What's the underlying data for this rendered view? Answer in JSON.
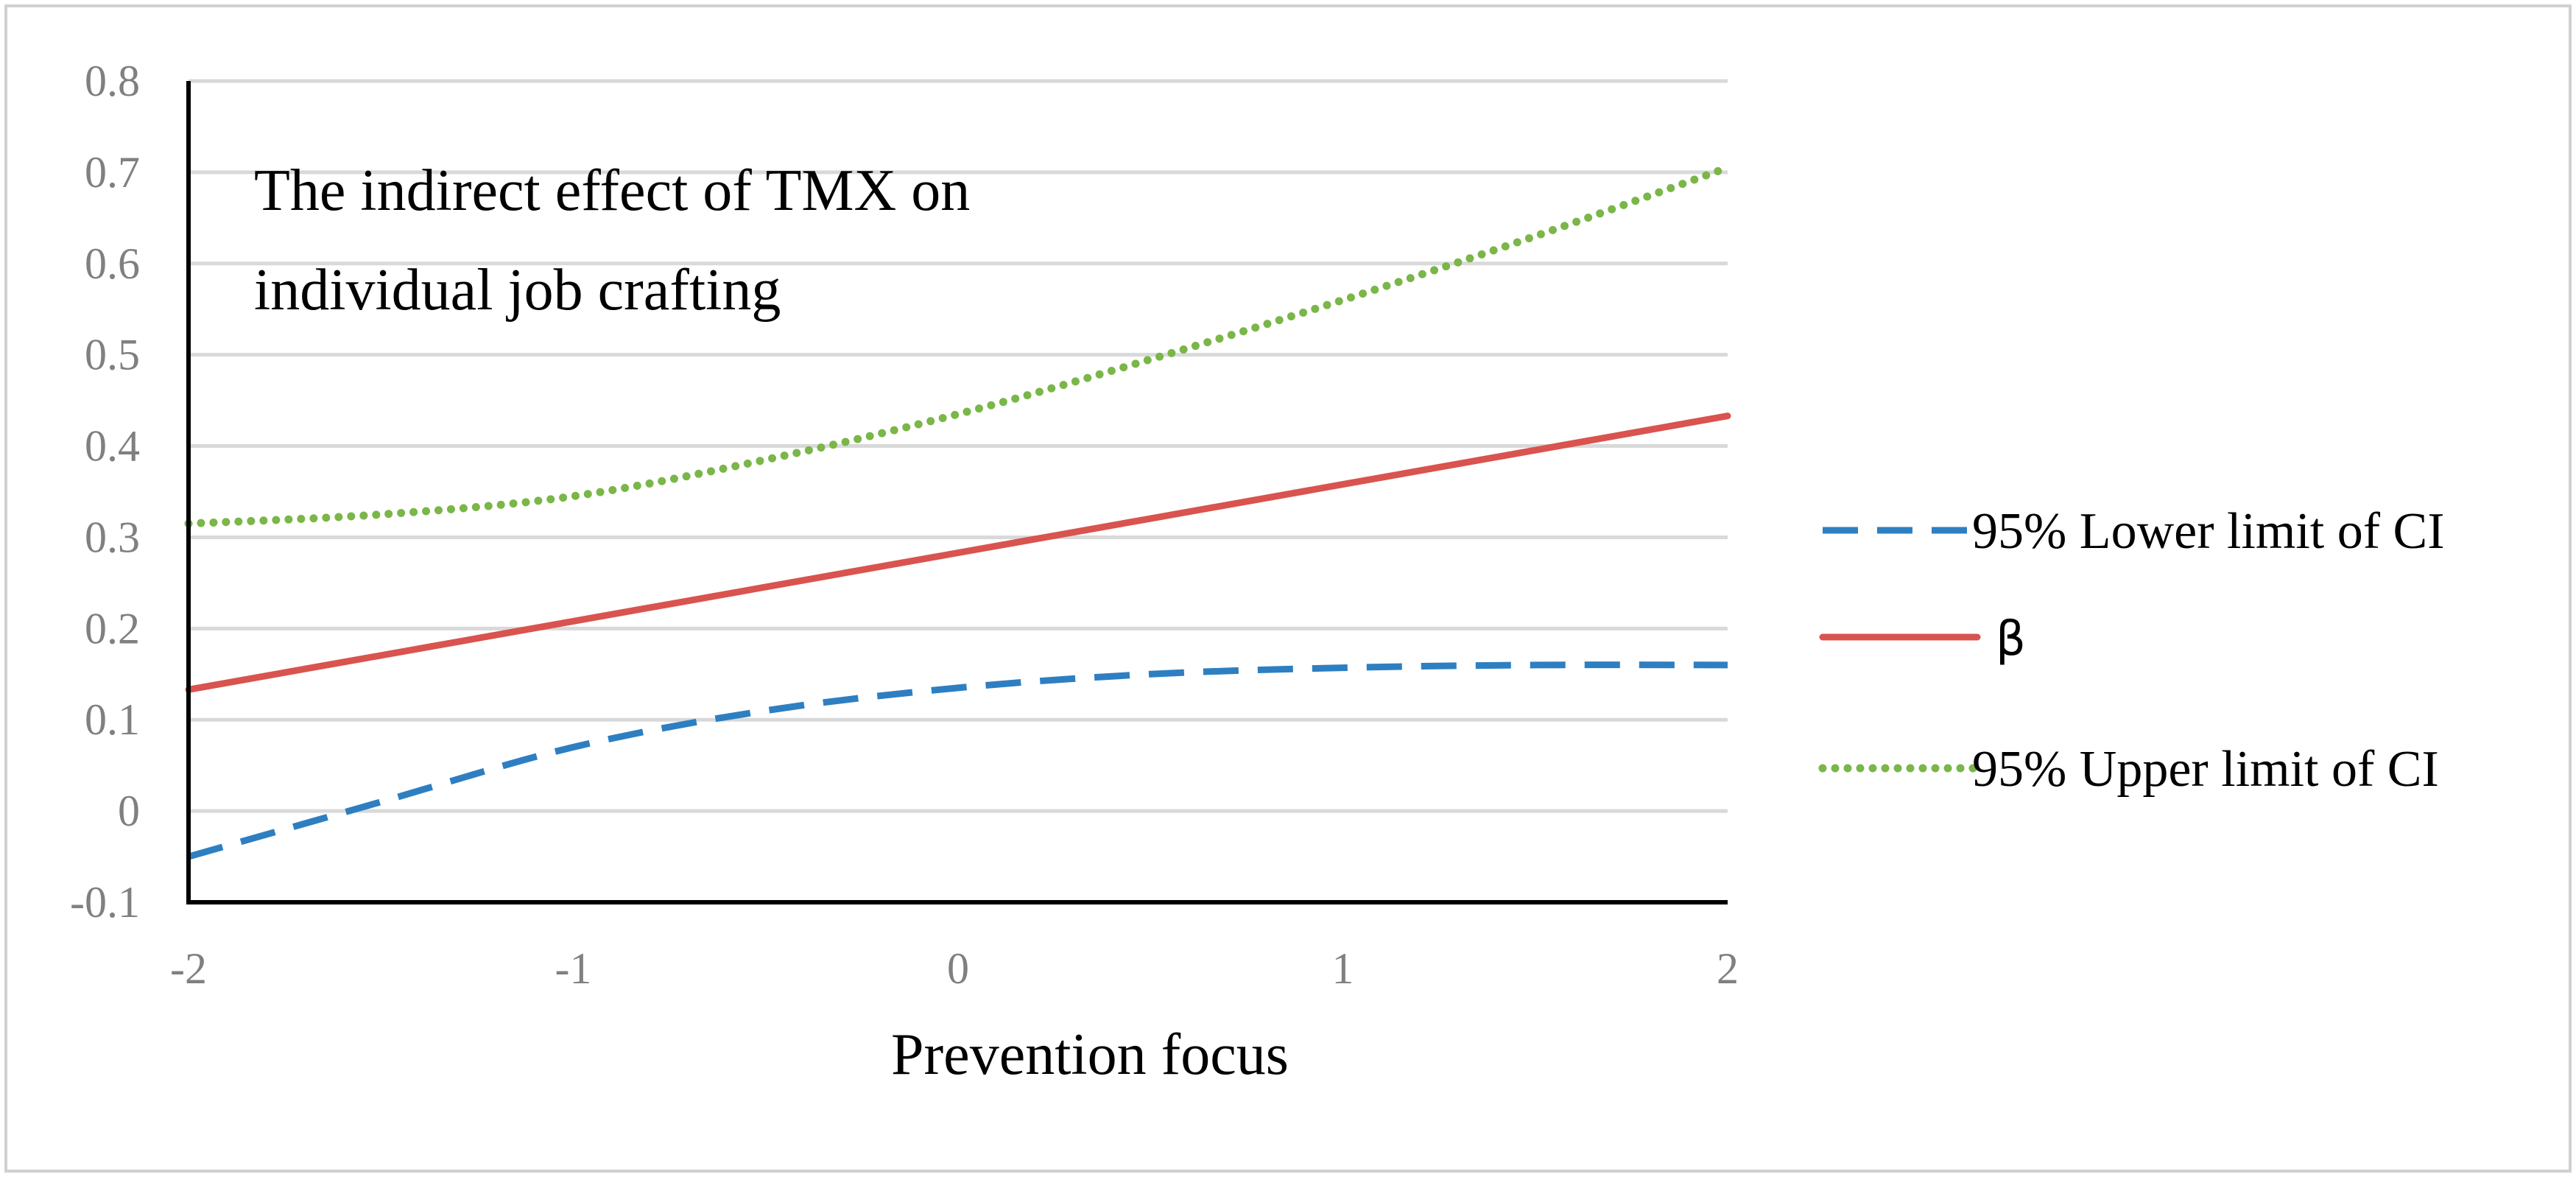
{
  "chart_data": {
    "type": "line",
    "title": "",
    "annotation": [
      "The indirect effect of TMX on",
      "individual job crafting"
    ],
    "xlabel": "Prevention focus",
    "ylabel": "",
    "xlim": [
      -2,
      2
    ],
    "ylim": [
      -0.1,
      0.8
    ],
    "x_ticks": [
      -2,
      -1,
      0,
      1,
      2
    ],
    "x_tick_labels": [
      "-2",
      "-1",
      "0",
      "1",
      "2"
    ],
    "y_ticks": [
      -0.1,
      0,
      0.1,
      0.2,
      0.3,
      0.4,
      0.5,
      0.6,
      0.7,
      0.8
    ],
    "y_tick_labels": [
      "-0.1",
      "0",
      "0.1",
      "0.2",
      "0.3",
      "0.4",
      "0.5",
      "0.6",
      "0.7",
      "0.8"
    ],
    "grid": true,
    "legend_position": "right",
    "series": [
      {
        "name": "95% Lower limit of CI",
        "color": "#2e7fc1",
        "style": "dashed",
        "x": [
          -2,
          -1.5,
          -1,
          -0.5,
          0,
          0.5,
          1,
          1.5,
          2
        ],
        "values": [
          -0.05,
          0.01,
          0.07,
          0.11,
          0.135,
          0.15,
          0.157,
          0.16,
          0.16
        ]
      },
      {
        "name": "β",
        "color": "#d9534f",
        "style": "solid",
        "x": [
          -2,
          -1,
          0,
          1,
          2
        ],
        "values": [
          0.133,
          0.208,
          0.283,
          0.358,
          0.433
        ]
      },
      {
        "name": "95% Upper limit of CI",
        "color": "#7ab648",
        "style": "dotted",
        "x": [
          -2,
          -1.5,
          -1,
          -0.5,
          0,
          0.5,
          1,
          1.5,
          2
        ],
        "values": [
          0.315,
          0.325,
          0.345,
          0.385,
          0.435,
          0.495,
          0.56,
          0.63,
          0.705
        ]
      }
    ]
  }
}
